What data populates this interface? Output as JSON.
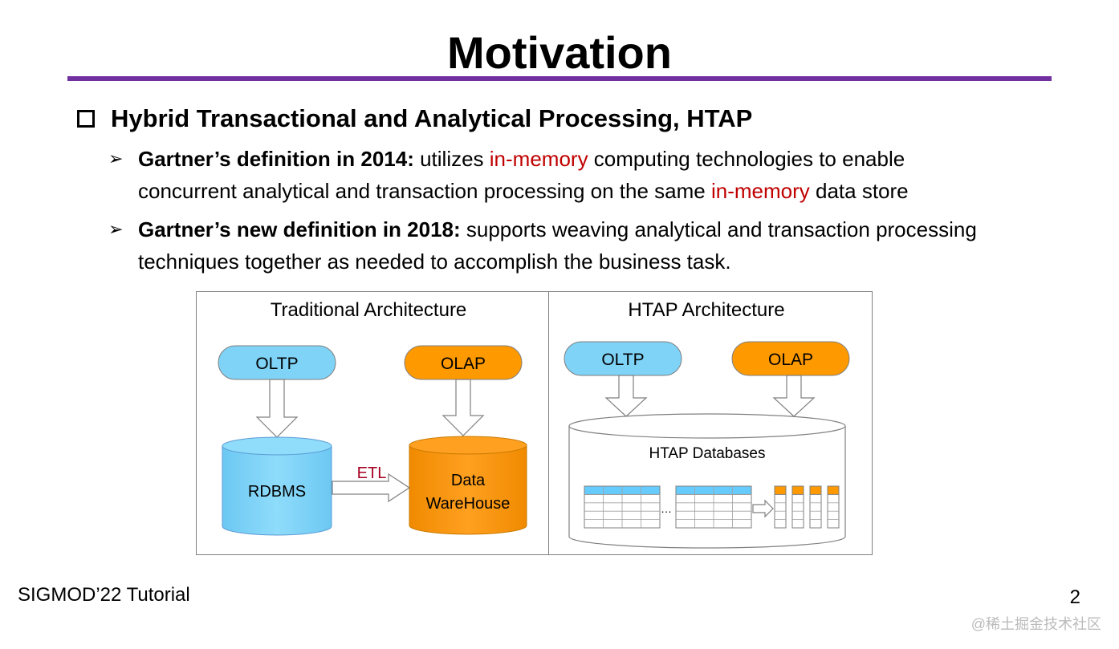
{
  "slide": {
    "title": "Motivation",
    "heading": "Hybrid Transactional and Analytical Processing, HTAP",
    "bullets": [
      {
        "lead": "Gartner’s definition in 2014:",
        "t1": " utilizes ",
        "r1": "in-memory",
        "t2": " computing technologies to enable concurrent analytical and transaction processing on the same ",
        "r2": "in-memory",
        "t3": " data store"
      },
      {
        "lead": "Gartner’s new definition in 2018:",
        "t1": " supports weaving analytical and transaction processing techniques together as needed to accomplish the business task."
      }
    ]
  },
  "diagram": {
    "traditional": {
      "title": "Traditional Architecture",
      "oltp": "OLTP",
      "olap": "OLAP",
      "rdbms": "RDBMS",
      "etl": "ETL",
      "warehouse_line1": "Data",
      "warehouse_line2": "WareHouse"
    },
    "htap": {
      "title": "HTAP Architecture",
      "oltp": "OLTP",
      "olap": "OLAP",
      "db_label": "HTAP Databases",
      "ellipsis": "…"
    },
    "colors": {
      "oltp_blue": "#7fd3f7",
      "olap_orange": "#ff9900",
      "etl_red": "#a50021",
      "table_header": "#66ccff"
    }
  },
  "footer": {
    "left": "SIGMOD’22 Tutorial",
    "page": "2",
    "watermark": "@稀土掘金技术社区"
  }
}
